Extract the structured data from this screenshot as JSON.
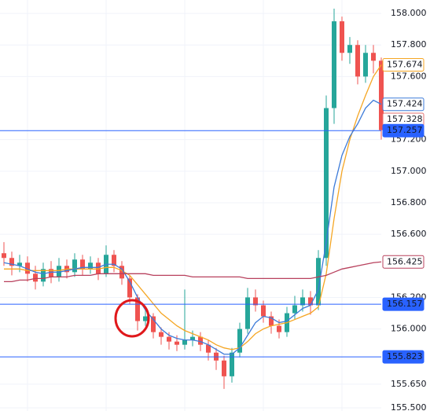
{
  "chart_data": {
    "type": "candlestick",
    "up_color": "#26a69a",
    "down_color": "#ef5350",
    "open": [
      156.48,
      156.45,
      156.4,
      156.42,
      156.35,
      156.3,
      156.38,
      156.33,
      156.4,
      156.36,
      156.44,
      156.38,
      156.42,
      156.35,
      156.47,
      156.4,
      156.32,
      156.2,
      156.05,
      156.08,
      155.98,
      155.95,
      155.92,
      155.9,
      155.93,
      155.95,
      155.9,
      155.85,
      155.8,
      155.7,
      155.85,
      156.0,
      156.2,
      156.15,
      156.08,
      156.02,
      155.98,
      156.1,
      156.15,
      156.2,
      156.15,
      156.45,
      157.4,
      157.95,
      157.75,
      157.8,
      157.6,
      157.75,
      157.7
    ],
    "high": [
      156.55,
      156.49,
      156.47,
      156.46,
      156.4,
      156.42,
      156.43,
      156.45,
      156.44,
      156.48,
      156.47,
      156.46,
      156.45,
      156.53,
      156.5,
      156.43,
      156.34,
      156.22,
      156.12,
      156.1,
      156.01,
      155.98,
      155.96,
      156.25,
      155.99,
      155.98,
      155.93,
      155.88,
      155.83,
      155.88,
      156.04,
      156.26,
      156.25,
      156.18,
      156.11,
      156.06,
      156.14,
      156.21,
      156.25,
      156.24,
      156.5,
      157.48,
      158.03,
      157.98,
      157.85,
      157.83,
      157.8,
      157.8,
      157.72
    ],
    "low": [
      156.4,
      156.34,
      156.36,
      156.3,
      156.25,
      156.27,
      156.29,
      156.3,
      156.32,
      156.33,
      156.34,
      156.35,
      156.31,
      156.33,
      156.36,
      156.28,
      156.16,
      155.99,
      156.02,
      155.94,
      155.9,
      155.87,
      155.86,
      155.87,
      155.89,
      155.86,
      155.8,
      155.74,
      155.62,
      155.66,
      155.82,
      155.97,
      156.11,
      156.04,
      155.97,
      155.94,
      155.95,
      156.06,
      156.11,
      156.09,
      156.12,
      156.4,
      157.3,
      157.7,
      157.68,
      157.55,
      157.56,
      157.62,
      157.2
    ],
    "close": [
      156.45,
      156.4,
      156.42,
      156.35,
      156.3,
      156.38,
      156.33,
      156.4,
      156.36,
      156.44,
      156.38,
      156.42,
      156.35,
      156.47,
      156.4,
      156.32,
      156.2,
      156.05,
      156.08,
      155.98,
      155.95,
      155.92,
      155.9,
      155.93,
      155.95,
      155.9,
      155.85,
      155.8,
      155.7,
      155.85,
      156.0,
      156.2,
      156.15,
      156.08,
      156.02,
      155.98,
      156.1,
      156.15,
      156.2,
      156.15,
      156.45,
      157.4,
      157.95,
      157.75,
      157.8,
      157.6,
      157.75,
      157.7,
      157.26
    ],
    "series": [
      {
        "color": "#f5a623",
        "values": [
          156.38,
          156.38,
          156.38,
          156.37,
          156.37,
          156.37,
          156.37,
          156.37,
          156.38,
          156.38,
          156.38,
          156.38,
          156.38,
          156.39,
          156.39,
          156.37,
          156.34,
          156.28,
          156.22,
          156.16,
          156.1,
          156.06,
          156.02,
          155.99,
          155.97,
          155.95,
          155.93,
          155.9,
          155.88,
          155.87,
          155.88,
          155.92,
          155.97,
          156.0,
          156.02,
          156.03,
          156.04,
          156.06,
          156.08,
          156.1,
          156.14,
          156.35,
          156.7,
          157.0,
          157.2,
          157.35,
          157.48,
          157.6,
          157.674
        ]
      },
      {
        "color": "#3d7bd9",
        "values": [
          156.42,
          156.41,
          156.4,
          156.38,
          156.36,
          156.35,
          156.36,
          156.36,
          156.37,
          156.38,
          156.39,
          156.39,
          156.39,
          156.41,
          156.41,
          156.38,
          156.3,
          156.2,
          156.12,
          156.06,
          156.0,
          155.96,
          155.94,
          155.93,
          155.93,
          155.92,
          155.9,
          155.87,
          155.84,
          155.84,
          155.88,
          155.96,
          156.04,
          156.08,
          156.07,
          156.04,
          156.05,
          156.09,
          156.13,
          156.15,
          156.25,
          156.55,
          156.9,
          157.1,
          157.22,
          157.3,
          157.4,
          157.45,
          157.424
        ]
      },
      {
        "color": "#b8415d",
        "values": [
          156.3,
          156.3,
          156.31,
          156.31,
          156.32,
          156.32,
          156.33,
          156.33,
          156.33,
          156.34,
          156.34,
          156.34,
          156.35,
          156.35,
          156.35,
          156.35,
          156.35,
          156.35,
          156.35,
          156.34,
          156.34,
          156.34,
          156.34,
          156.34,
          156.33,
          156.33,
          156.33,
          156.33,
          156.33,
          156.33,
          156.33,
          156.32,
          156.32,
          156.32,
          156.32,
          156.32,
          156.32,
          156.32,
          156.32,
          156.32,
          156.33,
          156.34,
          156.36,
          156.38,
          156.39,
          156.4,
          156.41,
          156.42,
          156.425
        ]
      }
    ],
    "levels": [
      {
        "value": 157.257,
        "color": "#2962ff"
      },
      {
        "value": 156.157,
        "color": "#2962ff"
      },
      {
        "value": 155.823,
        "color": "#2962ff"
      }
    ],
    "price_tags": [
      {
        "value": 157.674,
        "color": "#f5a623",
        "filled": false
      },
      {
        "value": 157.424,
        "color": "#3d7bd9",
        "filled": false
      },
      {
        "value": 157.328,
        "color": "#e57373",
        "filled": false
      },
      {
        "value": 157.257,
        "color": "#2962ff",
        "filled": true
      },
      {
        "value": 156.425,
        "color": "#b8415d",
        "filled": false
      },
      {
        "value": 156.157,
        "color": "#2962ff",
        "filled": true
      },
      {
        "value": 155.823,
        "color": "#2962ff",
        "filled": true
      }
    ],
    "ylim": [
      155.48,
      158.085
    ],
    "yticks": [
      {
        "value": 158,
        "label": "158.000"
      },
      {
        "value": 157.8,
        "label": "157.800"
      },
      {
        "value": 157.6,
        "label": "157.600"
      },
      {
        "value": 157.2,
        "label": "157.200"
      },
      {
        "value": 157,
        "label": "157.000"
      },
      {
        "value": 156.8,
        "label": "156.800"
      },
      {
        "value": 156.6,
        "label": "156.600"
      },
      {
        "value": 156.2,
        "label": "156.200"
      },
      {
        "value": 156,
        "label": "156.000"
      },
      {
        "value": 155.65,
        "label": "155.650"
      },
      {
        "value": 155.5,
        "label": "155.500"
      }
    ],
    "grid": true
  }
}
